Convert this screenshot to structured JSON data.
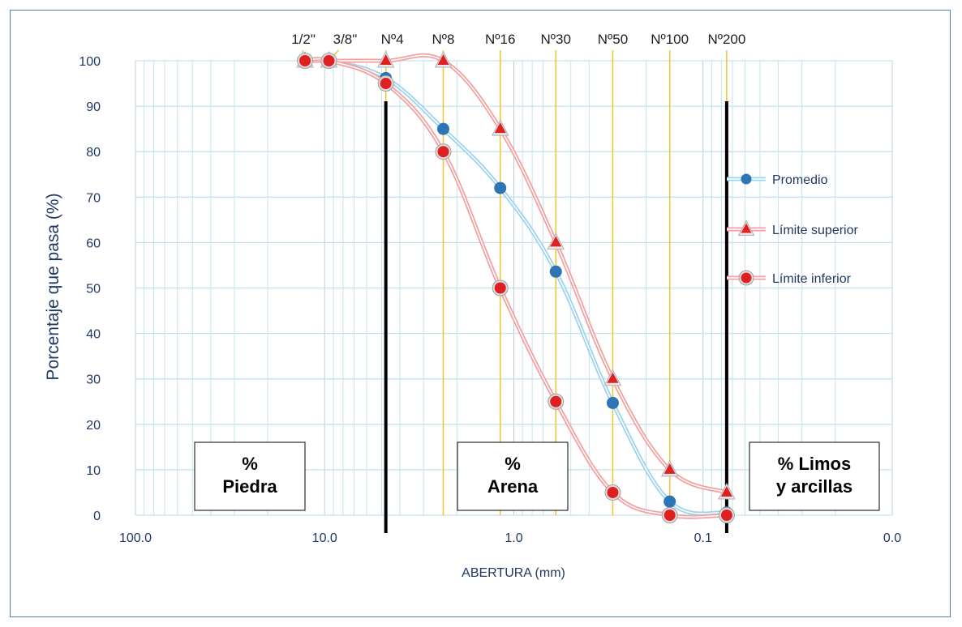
{
  "chart_data": {
    "type": "line",
    "title": "",
    "xlabel": "ABERTURA (mm)",
    "ylabel": "Porcentaje que pasa (%)",
    "x_scale": "log",
    "x_reversed": true,
    "xlim": [
      100.0,
      0.01
    ],
    "ylim": [
      0,
      100
    ],
    "x_tick_labels": [
      "100.0",
      "10.0",
      "1.0",
      "0.1",
      "0.0"
    ],
    "y_ticks": [
      0,
      10,
      20,
      30,
      40,
      50,
      60,
      70,
      80,
      90,
      100
    ],
    "grid": true,
    "legend_position": "right",
    "sieves": [
      {
        "label": "1/2\"",
        "opening": 12.7
      },
      {
        "label": "3/8\"",
        "opening": 9.5
      },
      {
        "label": "Nº4",
        "opening": 4.75
      },
      {
        "label": "Nº8",
        "opening": 2.36
      },
      {
        "label": "Nº16",
        "opening": 1.18
      },
      {
        "label": "Nº30",
        "opening": 0.6
      },
      {
        "label": "Nº50",
        "opening": 0.3
      },
      {
        "label": "Nº100",
        "opening": 0.15
      },
      {
        "label": "Nº200",
        "opening": 0.075
      }
    ],
    "series": [
      {
        "name": "Promedio",
        "color": "#2e75b6",
        "line_color": "#9dd3ef",
        "marker": "circle",
        "x": [
          12.7,
          9.5,
          4.75,
          2.36,
          1.18,
          0.6,
          0.3,
          0.15,
          0.075
        ],
        "y": [
          100,
          100,
          96.2,
          85,
          72,
          53.6,
          24.7,
          3,
          0.6
        ]
      },
      {
        "name": "Límite superior",
        "color": "#e02020",
        "line_color": "#f4a0a0",
        "marker": "triangle",
        "x": [
          12.7,
          9.5,
          4.75,
          2.36,
          1.18,
          0.6,
          0.3,
          0.15,
          0.075
        ],
        "y": [
          100,
          100,
          100,
          100,
          85,
          60,
          30,
          10,
          5
        ]
      },
      {
        "name": "Límite inferior",
        "color": "#e02020",
        "line_color": "#f4a0a0",
        "marker": "ringcircle",
        "x": [
          12.7,
          9.5,
          4.75,
          2.36,
          1.18,
          0.6,
          0.3,
          0.15,
          0.075
        ],
        "y": [
          100,
          100,
          95,
          80,
          50,
          25,
          5,
          0,
          0
        ]
      }
    ],
    "zones": [
      {
        "lines": [
          "%",
          "Piedra"
        ]
      },
      {
        "lines": [
          "%",
          "Arena"
        ]
      },
      {
        "lines": [
          "% Limos",
          "y arcillas"
        ]
      }
    ],
    "boundaries": [
      4.75,
      0.075
    ],
    "colors": {
      "axis_text": "#1f3864",
      "sieve_line": "#f2c230",
      "grid": "#c5e3ee",
      "boundary": "#000000"
    }
  }
}
